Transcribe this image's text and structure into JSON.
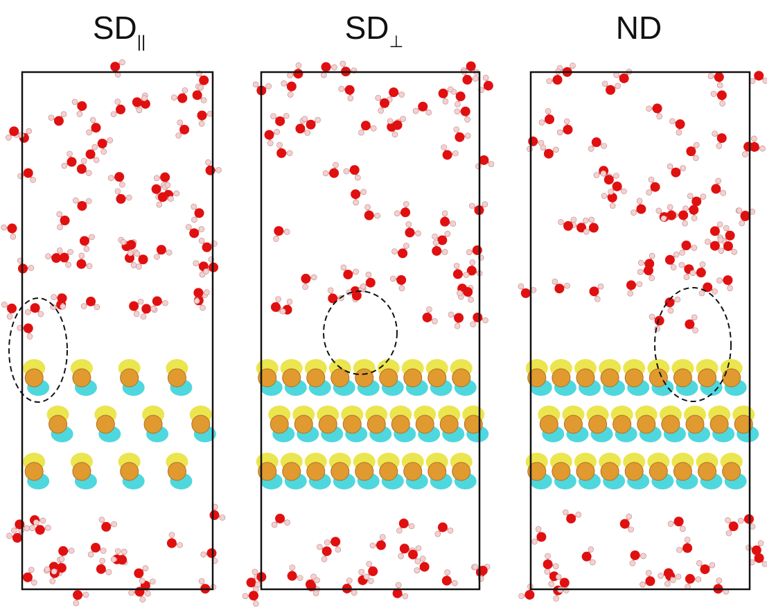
{
  "panels": [
    {
      "label": "SD",
      "subscript": "||"
    },
    {
      "label": "SD",
      "subscript": "⊥"
    },
    {
      "label": "ND"
    }
  ]
}
